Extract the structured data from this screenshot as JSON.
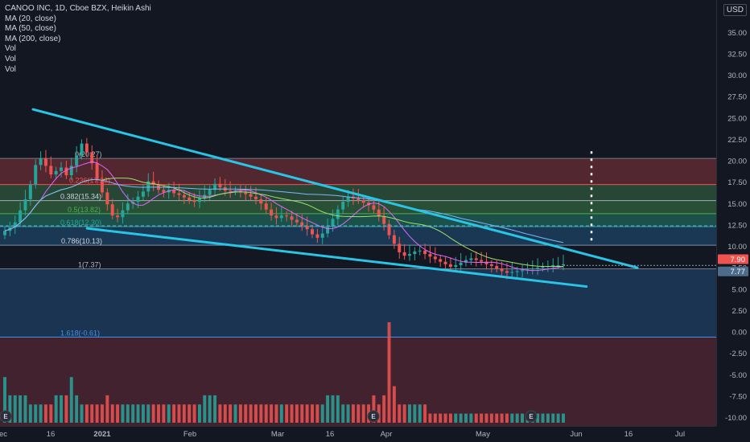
{
  "legend": {
    "symbol": "CANOO INC, 1D, Cboe BZX, Heikin Ashi",
    "ma20": "MA (20, close)",
    "ma50": "MA (50, close)",
    "ma200": "MA (200, close)",
    "vol1": "Vol",
    "vol2": "Vol",
    "vol3": "Vol"
  },
  "unit": "USD",
  "colors": {
    "background": "#131722",
    "up": "#26a69a",
    "down": "#ef5350",
    "trendline": "#29c5e6",
    "price_last": "#ef5350",
    "price_prev": "#4b6c8a"
  },
  "axis": {
    "y_ticks": [
      "35.00",
      "32.50",
      "30.00",
      "27.50",
      "25.00",
      "22.50",
      "20.00",
      "17.50",
      "15.00",
      "12.50",
      "10.00",
      "7.50",
      "5.00",
      "2.50",
      "0.00",
      "-2.50",
      "-5.00",
      "-7.50",
      "-10.00"
    ],
    "x_ticks": [
      "ec",
      "16",
      "2021",
      "Feb",
      "Mar",
      "16",
      "Apr",
      "May",
      "Jun",
      "16",
      "Jul"
    ],
    "price_last": "7.90",
    "price_prev": "7.77",
    "earnings_marker": "E"
  },
  "fib_labels": [
    {
      "text": "0(20.27)",
      "value": 20.27,
      "color": "#b2b5be"
    },
    {
      "text": "0.236(17.22)",
      "value": 17.22,
      "color": "#ef5350"
    },
    {
      "text": "0.382(15.34)",
      "value": 15.34,
      "color": "#d1d4dc"
    },
    {
      "text": "0.5(13.82)",
      "value": 13.82,
      "color": "#4caf50"
    },
    {
      "text": "0.618(12.30)",
      "value": 12.3,
      "color": "#26a69a"
    },
    {
      "text": "0.786(10.13)",
      "value": 10.13,
      "color": "#d1d4dc"
    },
    {
      "text": "1(7.37)",
      "value": 7.37,
      "color": "#b2b5be"
    },
    {
      "text": "1.618(-0.61)",
      "value": -0.61,
      "color": "#4a90e2"
    }
  ],
  "chart_data": {
    "type": "candlestick",
    "title": "CANOO INC, 1D, Cboe BZX, Heikin Ashi",
    "ylim": [
      -11,
      37
    ],
    "x_labels": [
      "ec",
      "16",
      "2021",
      "Feb",
      "Mar",
      "16",
      "Apr",
      "May",
      "Jun",
      "16",
      "Jul"
    ],
    "close": [
      11.8,
      12.2,
      12.8,
      14.2,
      15.5,
      17.2,
      19.5,
      20.3,
      19.4,
      18.4,
      18.8,
      19.2,
      18.3,
      19.4,
      20.6,
      22.0,
      21.0,
      19.7,
      17.8,
      16.3,
      14.9,
      13.6,
      13.4,
      14.2,
      15.0,
      15.2,
      15.8,
      16.4,
      17.6,
      17.2,
      16.6,
      16.3,
      16.6,
      16.2,
      16.0,
      15.7,
      15.4,
      15.2,
      15.6,
      16.0,
      16.6,
      17.3,
      16.9,
      16.5,
      16.4,
      16.5,
      16.3,
      16.1,
      15.8,
      15.5,
      15.0,
      14.3,
      13.6,
      13.3,
      13.6,
      13.5,
      13.1,
      12.8,
      12.4,
      12.0,
      11.4,
      11.0,
      11.5,
      12.3,
      13.2,
      14.3,
      15.2,
      15.8,
      15.6,
      15.4,
      15.1,
      14.8,
      14.3,
      13.5,
      12.6,
      11.3,
      10.3,
      9.3,
      8.9,
      9.1,
      9.4,
      9.5,
      9.1,
      8.8,
      8.5,
      8.2,
      7.9,
      7.6,
      7.8,
      8.1,
      8.4,
      8.6,
      8.4,
      8.2,
      7.9,
      7.7,
      7.4,
      7.1,
      6.9,
      7.0,
      7.1,
      7.2,
      7.3,
      7.4,
      7.5,
      7.6,
      7.7,
      7.8,
      7.8,
      7.9
    ],
    "volume": [
      5,
      3,
      3,
      3,
      3,
      2,
      2,
      2,
      2,
      2,
      3,
      3,
      3,
      5,
      3,
      2,
      2,
      2,
      2,
      2,
      3,
      2,
      2,
      2,
      2,
      2,
      2,
      2,
      2,
      2,
      2,
      2,
      2,
      2,
      2,
      2,
      2,
      2,
      2,
      3,
      3,
      3,
      2,
      2,
      2,
      2,
      2,
      2,
      2,
      2,
      2,
      2,
      2,
      2,
      2,
      2,
      2,
      2,
      2,
      2,
      2,
      2,
      2,
      3,
      3,
      3,
      2,
      2,
      2,
      2,
      2,
      2,
      3,
      2,
      3,
      11,
      4,
      2,
      2,
      2,
      2,
      2,
      2,
      1,
      1,
      1,
      1,
      1,
      1,
      1,
      1,
      1,
      1,
      1,
      1,
      1,
      1,
      1,
      1,
      1,
      1,
      1,
      1,
      1,
      1,
      1,
      1,
      1,
      1,
      1
    ],
    "trendlines": [
      {
        "from": [
          "2020-12-10",
          26.0
        ],
        "to": [
          "2021-06-18",
          7.5
        ]
      },
      {
        "from": [
          "2020-12-27",
          12.1
        ],
        "to": [
          "2021-06-02",
          5.3
        ]
      }
    ],
    "ma_series": [
      "MA (20, close)",
      "MA (50, close)",
      "MA (200, close)"
    ],
    "fib_levels": [
      {
        "ratio": 0,
        "value": 20.27
      },
      {
        "ratio": 0.236,
        "value": 17.22
      },
      {
        "ratio": 0.382,
        "value": 15.34
      },
      {
        "ratio": 0.5,
        "value": 13.82
      },
      {
        "ratio": 0.618,
        "value": 12.3
      },
      {
        "ratio": 0.786,
        "value": 10.13
      },
      {
        "ratio": 1,
        "value": 7.37
      },
      {
        "ratio": 1.618,
        "value": -0.61
      }
    ],
    "last_price": 7.9,
    "prev_price": 7.77,
    "dotted_target": 12.2
  }
}
